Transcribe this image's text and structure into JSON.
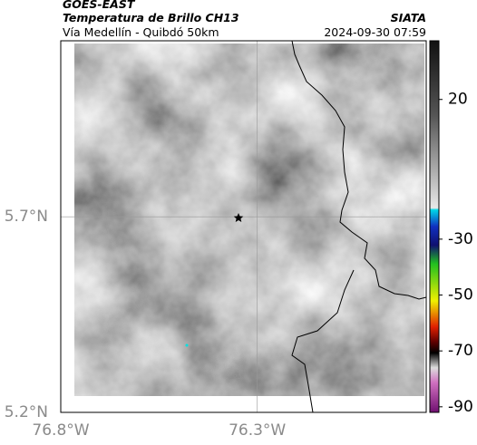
{
  "header": {
    "title": "GOES-EAST",
    "subtitle": "Temperatura de Brillo CH13",
    "route": "Vía Medellín - Quibdó 50km",
    "org": "SIATA",
    "datetime": "2024-09-30 07:59"
  },
  "map": {
    "xlim": [
      -76.8,
      -75.87
    ],
    "ylim": [
      5.2,
      6.15
    ],
    "xticks": [
      {
        "value": -76.8,
        "label": "76.8°W"
      },
      {
        "value": -76.3,
        "label": "76.3°W"
      }
    ],
    "yticks": [
      {
        "value": 5.7,
        "label": "5.7°N"
      },
      {
        "value": 5.2,
        "label": "5.2°N"
      }
    ]
  },
  "colorbar": {
    "lim": [
      -92,
      41
    ],
    "ticks": [
      20,
      -30,
      -50,
      -70,
      -90
    ]
  }
}
